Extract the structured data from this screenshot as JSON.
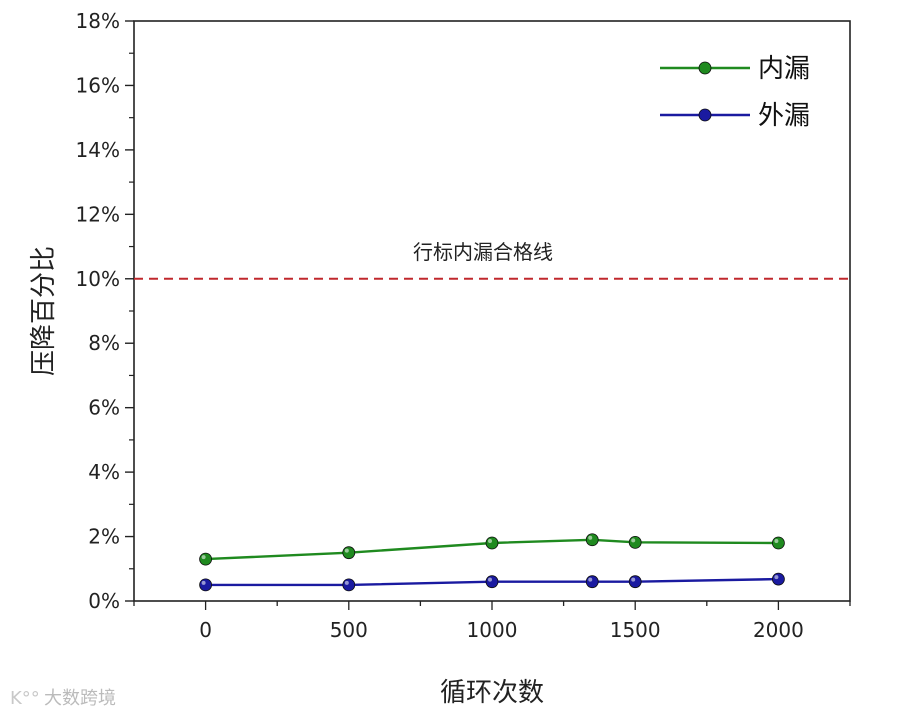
{
  "chart_data": {
    "type": "line",
    "title": "",
    "xlabel": "循环次数",
    "ylabel": "压降百分比",
    "xlim": [
      -250,
      2250
    ],
    "ylim": [
      0,
      18
    ],
    "x_ticks": [
      "0",
      "500",
      "1000",
      "1500",
      "2000"
    ],
    "y_ticks": [
      "0%",
      "2%",
      "4%",
      "6%",
      "8%",
      "10%",
      "12%",
      "14%",
      "16%",
      "18%"
    ],
    "series": [
      {
        "name": "内漏",
        "color": "#1f8a1f",
        "points": [
          {
            "x": 0,
            "y": 1.3
          },
          {
            "x": 500,
            "y": 1.5
          },
          {
            "x": 1000,
            "y": 1.8
          },
          {
            "x": 1350,
            "y": 1.9
          },
          {
            "x": 1500,
            "y": 1.82
          },
          {
            "x": 2000,
            "y": 1.8
          }
        ]
      },
      {
        "name": "外漏",
        "color": "#1a1aa0",
        "points": [
          {
            "x": 0,
            "y": 0.5
          },
          {
            "x": 500,
            "y": 0.5
          },
          {
            "x": 1000,
            "y": 0.6
          },
          {
            "x": 1350,
            "y": 0.6
          },
          {
            "x": 1500,
            "y": 0.6
          },
          {
            "x": 2000,
            "y": 0.68
          }
        ]
      }
    ],
    "reference_line": {
      "y": 10,
      "label": "行标内漏合格线",
      "color": "#c0282d",
      "style": "dashed"
    },
    "legend_position": "top-right",
    "grid": false
  },
  "watermark": "大数跨境"
}
